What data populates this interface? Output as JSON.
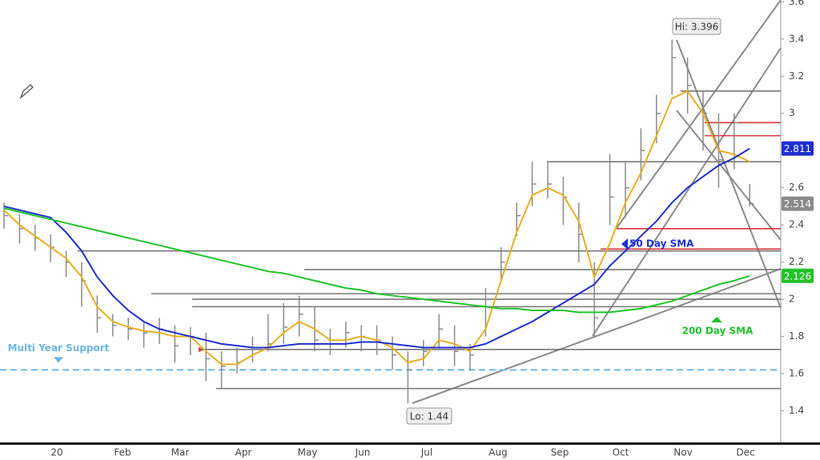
{
  "chart_data": {
    "type": "ohlc",
    "bar_color": "#8a8a8a",
    "ylim": [
      1.23,
      3.61
    ],
    "yticks": [
      1.4,
      1.6,
      1.8,
      2,
      2.2,
      2.4,
      2.6,
      3,
      3.2,
      3.4,
      3.6
    ],
    "xticks": [
      "20",
      "Feb",
      "Mar",
      "Apr",
      "May",
      "Jun",
      "Jul",
      "Aug",
      "Sep",
      "Oct",
      "Nov",
      "Dec"
    ],
    "high": [
      2.52,
      2.46,
      2.4,
      2.35,
      2.26,
      2.2,
      2.02,
      1.92,
      1.9,
      1.88,
      1.9,
      1.86,
      1.85,
      1.82,
      1.72,
      1.74,
      1.8,
      1.92,
      1.98,
      2.02,
      1.96,
      1.84,
      1.88,
      1.86,
      1.86,
      1.8,
      1.72,
      1.78,
      1.92,
      1.86,
      1.76,
      2.06,
      2.28,
      2.52,
      2.74,
      2.74,
      2.66,
      2.52,
      2.2,
      2.78,
      2.74,
      2.92,
      3.1,
      3.396,
      3.3,
      3.12,
      3.0,
      3.0,
      2.62
    ],
    "low": [
      2.38,
      2.3,
      2.26,
      2.2,
      2.12,
      1.96,
      1.82,
      1.8,
      1.78,
      1.74,
      1.76,
      1.66,
      1.7,
      1.56,
      1.52,
      1.6,
      1.66,
      1.72,
      1.76,
      1.8,
      1.72,
      1.7,
      1.74,
      1.72,
      1.7,
      1.62,
      1.44,
      1.64,
      1.74,
      1.64,
      1.62,
      1.8,
      2.1,
      2.34,
      2.5,
      2.54,
      2.4,
      2.2,
      1.8,
      2.4,
      2.44,
      2.64,
      2.84,
      3.1,
      3.0,
      2.8,
      2.6,
      2.7,
      2.5
    ],
    "close": [
      2.45,
      2.38,
      2.33,
      2.28,
      2.2,
      2.1,
      1.9,
      1.86,
      1.84,
      1.82,
      1.84,
      1.75,
      1.8,
      1.68,
      1.64,
      1.66,
      1.74,
      1.76,
      1.85,
      1.92,
      1.78,
      1.76,
      1.82,
      1.8,
      1.78,
      1.7,
      1.62,
      1.72,
      1.84,
      1.72,
      1.7,
      1.96,
      2.2,
      2.45,
      2.62,
      2.62,
      2.55,
      2.35,
      1.9,
      2.55,
      2.6,
      2.8,
      3.0,
      3.3,
      3.15,
      3.0,
      2.75,
      2.95,
      2.514
    ],
    "series": [
      {
        "color": "#e6b021",
        "values": [
          2.48,
          2.4,
          2.34,
          2.28,
          2.22,
          2.12,
          1.96,
          1.88,
          1.85,
          1.83,
          1.82,
          1.8,
          1.8,
          1.72,
          1.65,
          1.65,
          1.7,
          1.74,
          1.82,
          1.88,
          1.84,
          1.78,
          1.78,
          1.8,
          1.78,
          1.74,
          1.66,
          1.68,
          1.78,
          1.76,
          1.72,
          1.84,
          2.1,
          2.36,
          2.56,
          2.6,
          2.56,
          2.42,
          2.12,
          2.3,
          2.52,
          2.68,
          2.88,
          3.08,
          3.12,
          3.0,
          2.8,
          2.78,
          2.74
        ]
      },
      {
        "name": "50 Day SMA",
        "color": "#1f2fd0",
        "values": [
          2.5,
          2.48,
          2.46,
          2.44,
          2.36,
          2.26,
          2.12,
          2.02,
          1.94,
          1.88,
          1.84,
          1.82,
          1.8,
          1.78,
          1.76,
          1.75,
          1.74,
          1.74,
          1.75,
          1.76,
          1.76,
          1.76,
          1.76,
          1.77,
          1.77,
          1.76,
          1.75,
          1.74,
          1.74,
          1.74,
          1.74,
          1.76,
          1.8,
          1.84,
          1.88,
          1.93,
          1.98,
          2.03,
          2.08,
          2.18,
          2.26,
          2.34,
          2.42,
          2.52,
          2.6,
          2.66,
          2.72,
          2.76,
          2.811
        ]
      },
      {
        "name": "200 Day SMA",
        "color": "#22c22a",
        "values": [
          2.49,
          2.47,
          2.45,
          2.43,
          2.41,
          2.39,
          2.37,
          2.35,
          2.33,
          2.31,
          2.29,
          2.27,
          2.25,
          2.23,
          2.21,
          2.19,
          2.17,
          2.15,
          2.14,
          2.12,
          2.1,
          2.08,
          2.06,
          2.05,
          2.03,
          2.02,
          2.01,
          2.0,
          1.99,
          1.98,
          1.97,
          1.96,
          1.95,
          1.95,
          1.94,
          1.94,
          1.94,
          1.93,
          1.93,
          1.93,
          1.94,
          1.95,
          1.97,
          1.99,
          2.02,
          2.05,
          2.08,
          2.1,
          2.126
        ]
      }
    ],
    "levels": [
      {
        "value": 3.12,
        "color": "#777777"
      },
      {
        "value": 2.95,
        "color": "#d9343a"
      },
      {
        "value": 2.88,
        "color": "#d9343a"
      },
      {
        "value": 2.74,
        "color": "#777777"
      },
      {
        "value": 2.38,
        "color": "#d9343a"
      },
      {
        "value": 2.27,
        "color": "#d9343a"
      },
      {
        "value": 2.26,
        "color": "#777777"
      },
      {
        "value": 2.16,
        "color": "#777777"
      },
      {
        "value": 2.03,
        "color": "#777777"
      },
      {
        "value": 2.0,
        "color": "#777777"
      },
      {
        "value": 1.96,
        "color": "#777777"
      },
      {
        "value": 1.73,
        "color": "#777777"
      },
      {
        "value": 1.52,
        "color": "#777777"
      }
    ],
    "support": {
      "value": 1.62,
      "color": "#6cb6e6",
      "dashed": true,
      "label": "Multi Year Support"
    },
    "high_label": "Hi: 3.396",
    "low_label": "Lo: 1.44"
  }
}
